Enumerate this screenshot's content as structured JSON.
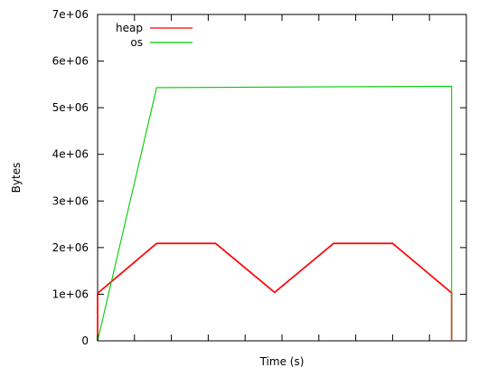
{
  "chart_data": {
    "type": "line",
    "title": "",
    "xlabel": "Time (s)",
    "ylabel": "Bytes",
    "xlim": [
      0,
      50
    ],
    "ylim": [
      0,
      7000000
    ],
    "x_ticks": [
      0,
      5,
      10,
      15,
      20,
      25,
      30,
      35,
      40,
      45,
      50
    ],
    "y_ticks": [
      {
        "value": 0,
        "label": "0"
      },
      {
        "value": 1000000,
        "label": "1e+06"
      },
      {
        "value": 2000000,
        "label": "2e+06"
      },
      {
        "value": 3000000,
        "label": "3e+06"
      },
      {
        "value": 4000000,
        "label": "4e+06"
      },
      {
        "value": 5000000,
        "label": "5e+06"
      },
      {
        "value": 6000000,
        "label": "6e+06"
      },
      {
        "value": 7000000,
        "label": "7e+06"
      }
    ],
    "grid": false,
    "legend_position": "top-left",
    "series": [
      {
        "name": "heap",
        "color": "#ff0000",
        "points": [
          {
            "x": 0,
            "y": 0
          },
          {
            "x": 0,
            "y": 1020000
          },
          {
            "x": 8,
            "y": 2090000
          },
          {
            "x": 16,
            "y": 2090000
          },
          {
            "x": 24,
            "y": 1040000
          },
          {
            "x": 32,
            "y": 2090000
          },
          {
            "x": 40,
            "y": 2090000
          },
          {
            "x": 48,
            "y": 1030000
          },
          {
            "x": 48,
            "y": 0
          }
        ]
      },
      {
        "name": "os",
        "color": "#00cc00",
        "points": [
          {
            "x": 0,
            "y": 0
          },
          {
            "x": 8,
            "y": 5430000
          },
          {
            "x": 48,
            "y": 5460000
          },
          {
            "x": 48,
            "y": 0
          }
        ]
      }
    ]
  }
}
